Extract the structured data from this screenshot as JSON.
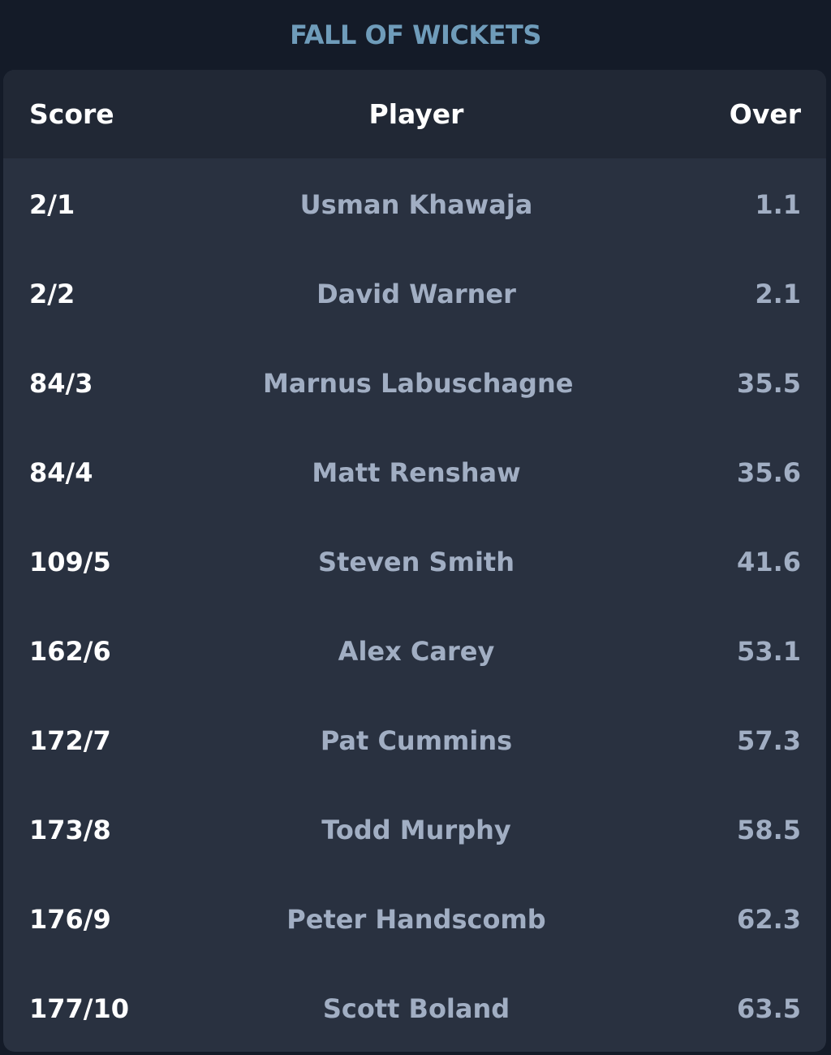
{
  "title": "FALL OF WICKETS",
  "columns": {
    "score": "Score",
    "player": "Player",
    "over": "Over"
  },
  "wickets": [
    {
      "score": "2/1",
      "player": "Usman Khawaja",
      "over": "1.1"
    },
    {
      "score": "2/2",
      "player": "David Warner",
      "over": "2.1"
    },
    {
      "score": "84/3",
      "player": "Marnus Labuschagne",
      "over": "35.5"
    },
    {
      "score": "84/4",
      "player": "Matt Renshaw",
      "over": "35.6"
    },
    {
      "score": "109/5",
      "player": "Steven Smith",
      "over": "41.6"
    },
    {
      "score": "162/6",
      "player": "Alex Carey",
      "over": "53.1"
    },
    {
      "score": "172/7",
      "player": "Pat Cummins",
      "over": "57.3"
    },
    {
      "score": "173/8",
      "player": "Todd Murphy",
      "over": "58.5"
    },
    {
      "score": "176/9",
      "player": "Peter Handscomb",
      "over": "62.3"
    },
    {
      "score": "177/10",
      "player": "Scott Boland",
      "over": "63.5"
    }
  ],
  "colors": {
    "page_background": "#141b28",
    "card_background": "#293140",
    "header_background": "#212835",
    "title": "#6f9cba",
    "score_text": "#ffffff",
    "secondary_text": "#a1aec3"
  }
}
